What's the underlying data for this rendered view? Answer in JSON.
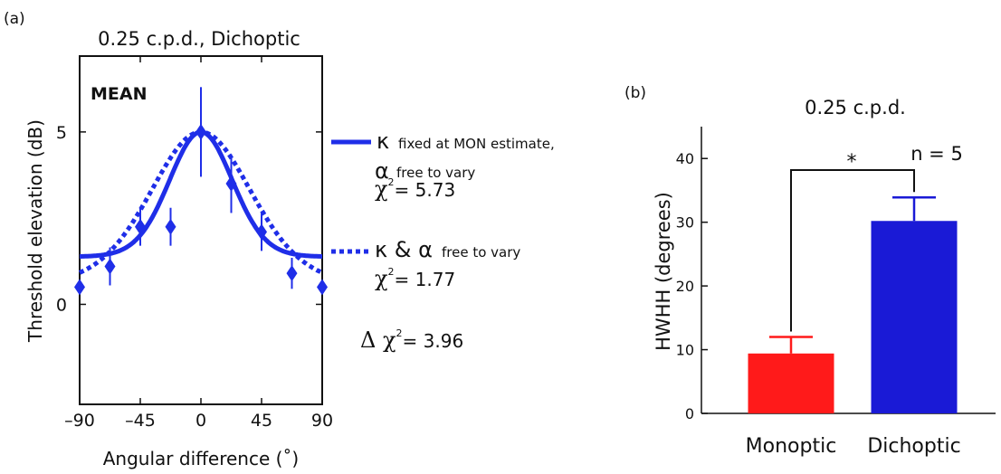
{
  "chart_data": [
    {
      "panel_label": "(a)",
      "type": "scatter",
      "title": "0.25 c.p.d., Dichoptic",
      "xlabel": "Angular difference (˚)",
      "ylabel": "Threshold elevation (dB)",
      "xlim": [
        -90,
        90
      ],
      "ylim": [
        -2.9,
        7.2
      ],
      "xticks": [
        -90,
        -45,
        0,
        45,
        90
      ],
      "xtick_labels": [
        "–90",
        "–45",
        "0",
        "45",
        "90"
      ],
      "yticks": [
        0,
        5
      ],
      "ytick_labels": [
        "0",
        "5"
      ],
      "annotation": "MEAN",
      "points": {
        "x": [
          -90,
          -67.5,
          -45,
          -22.5,
          0,
          22.5,
          45,
          67.5,
          90
        ],
        "y": [
          0.5,
          1.1,
          2.25,
          2.25,
          5.0,
          3.5,
          2.1,
          0.9,
          0.5
        ],
        "err": [
          0,
          0.55,
          0.55,
          0.55,
          1.3,
          0.85,
          0.55,
          0.45,
          0
        ]
      },
      "series": [
        {
          "name_parts": [
            "κ",
            "fixed at MON estimate,",
            "α",
            "free to vary"
          ],
          "style": "solid",
          "chi2": "χ² = 5.73",
          "chi2_value": "= 5.73",
          "baseline": 1.38,
          "amplitude": 3.62,
          "kappa": 3.0
        },
        {
          "name_parts": [
            "κ & α",
            "free to vary"
          ],
          "style": "dotted",
          "chi2": "χ² = 1.77",
          "chi2_value": "= 1.77",
          "baseline": 0.55,
          "amplitude": 4.45,
          "kappa": 1.2
        }
      ],
      "delta_chi2": "Δχ² = 3.96",
      "delta_chi2_value": "= 3.96",
      "color": "#1f2ee8"
    },
    {
      "panel_label": "(b)",
      "type": "bar",
      "title": "0.25 c.p.d.",
      "ylabel": "HWHH (degrees)",
      "categories": [
        "Monoptic",
        "Dichoptic"
      ],
      "values": [
        9.4,
        30.2
      ],
      "errors": [
        2.6,
        3.7
      ],
      "colors": [
        "#ff1a1a",
        "#1a1ad6"
      ],
      "ylim": [
        0,
        45
      ],
      "yticks": [
        0,
        10,
        20,
        30,
        40
      ],
      "ytick_labels": [
        "0",
        "10",
        "20",
        "30",
        "40"
      ],
      "significance": "*",
      "note": "n = 5"
    }
  ]
}
